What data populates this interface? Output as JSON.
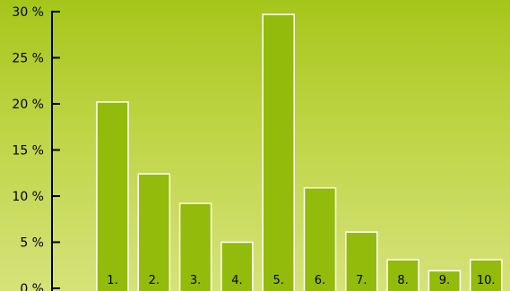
{
  "chart_data": {
    "type": "bar",
    "title": "",
    "xlabel": "",
    "ylabel": "",
    "categories": [
      "1.",
      "2.",
      "3.",
      "4.",
      "5.",
      "6.",
      "7.",
      "8.",
      "9.",
      "10."
    ],
    "values": [
      20.2,
      12.4,
      9.2,
      5.0,
      29.7,
      10.9,
      6.1,
      3.1,
      1.9,
      3.1
    ],
    "ylim": [
      0,
      30
    ],
    "yticks": [
      "0 %",
      "5 %",
      "10 %",
      "15 %",
      "20 %",
      "25 %",
      "30 %"
    ],
    "grid": false,
    "legend": "none",
    "colors": {
      "bar_fill": "#93bb0b",
      "bar_stroke": "#ffffff",
      "axis": "#000000"
    }
  }
}
